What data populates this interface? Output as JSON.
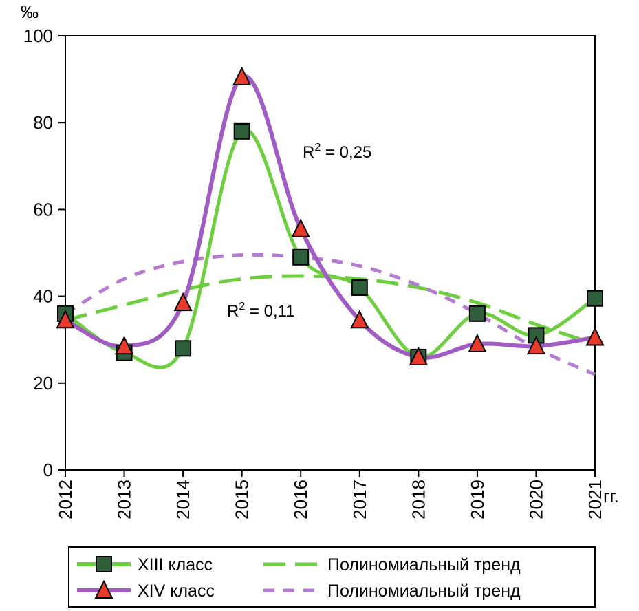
{
  "chart_data": {
    "type": "line",
    "title": "",
    "ylabel": "‰",
    "xlabel": "гг.",
    "ylim": [
      0,
      100
    ],
    "yticks": [
      0,
      20,
      40,
      60,
      80,
      100
    ],
    "x": [
      "2012",
      "2013",
      "2014",
      "2015",
      "2016",
      "2017",
      "2018",
      "2019",
      "2020",
      "2021"
    ],
    "series": [
      {
        "name": "XIII класс",
        "values": [
          36,
          27,
          28,
          78,
          49,
          42,
          26,
          36,
          31,
          39.5
        ],
        "color": "#6dce3f",
        "marker": "square",
        "marker_color": "#2f5f3a"
      },
      {
        "name": "XIV класс",
        "values": [
          34.5,
          28.5,
          38.5,
          90.5,
          55.5,
          34.5,
          26,
          29,
          28.5,
          30.5
        ],
        "color": "#a05bc4",
        "marker": "triangle",
        "marker_color": "#e83a2a"
      }
    ],
    "trends": [
      {
        "name": "Полиномиальный тренд",
        "series": "XIII класс",
        "values": [
          34.5,
          38,
          41.5,
          44,
          44.7,
          44,
          42,
          38.5,
          33.5,
          29
        ],
        "color": "#6dce3f",
        "style": "dashed",
        "r2_label": "R² = 0,11"
      },
      {
        "name": "Полиномиальный тренд",
        "series": "XIV класс",
        "values": [
          36,
          44,
          48,
          49.5,
          49,
          47,
          42.5,
          36,
          28,
          22
        ],
        "color": "#b57ad1",
        "style": "dotted",
        "r2_label": "R² = 0,25"
      }
    ],
    "legend": {
      "placement": "bottom"
    },
    "grid": false
  }
}
